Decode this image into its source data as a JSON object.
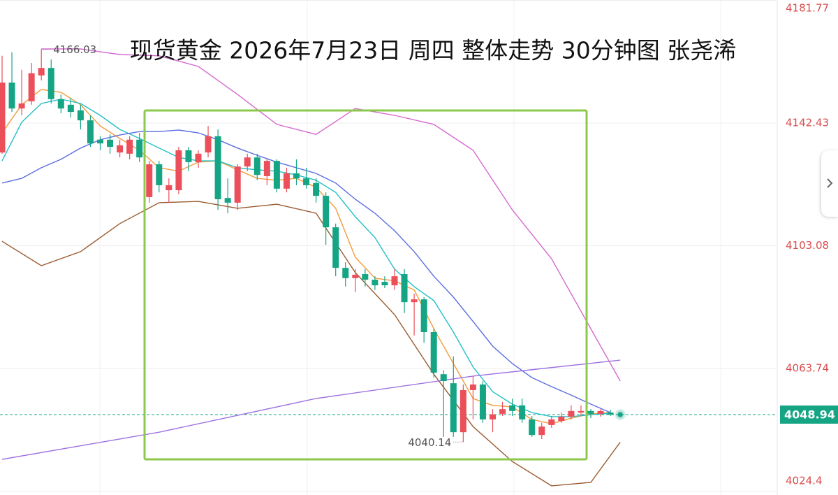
{
  "chart_data": {
    "type": "candlestick",
    "title": "现货黄金 2026年7月23日 周四 整体走势 30分钟图 张尧浠",
    "ylim": [
      4023.16,
      4181.89
    ],
    "yticks": [
      4181.77,
      4142.43,
      4103.08,
      4063.74,
      4024.4
    ],
    "up_color": "#eb4f5a",
    "down_color": "#15a585",
    "grid": true,
    "current_price": 4048.94,
    "high_marker": 4166.03,
    "low_marker": 4040.14,
    "candles": [
      [
        4133.0,
        4164.0,
        4132.6,
        4155.4
      ],
      [
        4155.4,
        4165.1,
        4146.0,
        4147.1
      ],
      [
        4147.1,
        4159.5,
        4144.9,
        4148.7
      ],
      [
        4149.4,
        4161.7,
        4148.3,
        4158.4
      ],
      [
        4157.7,
        4166.03,
        4156.1,
        4160.1
      ],
      [
        4160.1,
        4162.8,
        4148.7,
        4150.1
      ],
      [
        4150.1,
        4151.6,
        4145.6,
        4147.1
      ],
      [
        4148.3,
        4150.5,
        4144.2,
        4146.0
      ],
      [
        4146.5,
        4148.3,
        4140.4,
        4143.3
      ],
      [
        4143.3,
        4144.9,
        4134.8,
        4135.9
      ],
      [
        4137.1,
        4138.2,
        4133.7,
        4135.9
      ],
      [
        4137.1,
        4138.8,
        4132.6,
        4134.8
      ],
      [
        4133.0,
        4137.1,
        4131.4,
        4135.3
      ],
      [
        4132.6,
        4138.2,
        4130.8,
        4137.1
      ],
      [
        4137.1,
        4139.3,
        4129.9,
        4131.4
      ],
      [
        4118.7,
        4130.3,
        4116.9,
        4129.2
      ],
      [
        4129.2,
        4130.3,
        4120.2,
        4122.5
      ],
      [
        4120.9,
        4124.7,
        4116.9,
        4122.5
      ],
      [
        4120.9,
        4134.8,
        4119.6,
        4133.7
      ],
      [
        4133.7,
        4134.8,
        4127.0,
        4129.9
      ],
      [
        4129.9,
        4133.7,
        4128.1,
        4132.6
      ],
      [
        4133.0,
        4141.5,
        4131.4,
        4138.2
      ],
      [
        4138.2,
        4140.4,
        4114.6,
        4118.0
      ],
      [
        4118.4,
        4124.7,
        4113.5,
        4116.9
      ],
      [
        4116.9,
        4129.2,
        4114.6,
        4128.5
      ],
      [
        4128.5,
        4132.6,
        4127.0,
        4131.4
      ],
      [
        4131.4,
        4132.6,
        4124.1,
        4125.8
      ],
      [
        4125.4,
        4130.8,
        4122.5,
        4130.3
      ],
      [
        4130.3,
        4130.8,
        4120.2,
        4121.4
      ],
      [
        4121.4,
        4128.1,
        4120.2,
        4126.3
      ],
      [
        4126.3,
        4130.8,
        4122.5,
        4124.7
      ],
      [
        4124.7,
        4128.1,
        4121.4,
        4122.5
      ],
      [
        4123.2,
        4124.7,
        4116.9,
        4119.1
      ],
      [
        4119.1,
        4120.2,
        4103.4,
        4109.0
      ],
      [
        4109.0,
        4110.2,
        4093.3,
        4096.0
      ],
      [
        4096.0,
        4097.8,
        4090.0,
        4092.7
      ],
      [
        4092.7,
        4095.6,
        4088.2,
        4093.8
      ],
      [
        4094.0,
        4095.6,
        4090.0,
        4092.2
      ],
      [
        4092.2,
        4093.3,
        4088.9,
        4090.4
      ],
      [
        4091.5,
        4093.3,
        4089.5,
        4090.4
      ],
      [
        4090.4,
        4095.6,
        4088.9,
        4093.3
      ],
      [
        4094.0,
        4095.6,
        4081.5,
        4085.0
      ],
      [
        4085.0,
        4087.7,
        4074.3,
        4085.9
      ],
      [
        4085.9,
        4086.6,
        4072.0,
        4075.4
      ],
      [
        4075.4,
        4076.5,
        4060.8,
        4062.4
      ],
      [
        4061.9,
        4063.1,
        4041.8,
        4059.7
      ],
      [
        4059.0,
        4067.6,
        4041.8,
        4043.3
      ],
      [
        4043.3,
        4058.6,
        4040.14,
        4056.8
      ],
      [
        4056.8,
        4061.3,
        4047.4,
        4058.6
      ],
      [
        4058.6,
        4059.7,
        4046.3,
        4047.4
      ],
      [
        4047.4,
        4050.7,
        4043.3,
        4049.0
      ],
      [
        4049.2,
        4053.0,
        4048.5,
        4050.7
      ],
      [
        4051.9,
        4054.1,
        4048.5,
        4050.1
      ],
      [
        4051.9,
        4054.1,
        4046.3,
        4047.4
      ],
      [
        4047.4,
        4048.5,
        4041.8,
        4042.4
      ],
      [
        4042.4,
        4046.3,
        4041.1,
        4045.1
      ],
      [
        4045.6,
        4048.5,
        4044.7,
        4047.4
      ],
      [
        4046.9,
        4049.6,
        4046.3,
        4048.3
      ],
      [
        4048.3,
        4051.9,
        4047.4,
        4050.1
      ],
      [
        4049.6,
        4051.9,
        4048.5,
        4050.1
      ],
      [
        4050.1,
        4050.7,
        4047.8,
        4049.2
      ],
      [
        4049.2,
        4050.7,
        4048.3,
        4050.1
      ],
      [
        4049.6,
        4050.5,
        4048.5,
        4048.94
      ]
    ],
    "lines": [
      {
        "color": "#f39a3a",
        "x": [
          0,
          2,
          4,
          6,
          8,
          10,
          12,
          14,
          16,
          18,
          20,
          22,
          24,
          26,
          28,
          30,
          32,
          34,
          36,
          38,
          40,
          42,
          44,
          46,
          48,
          50,
          52,
          54,
          56,
          58,
          60,
          62
        ],
        "values": [
          4139.3,
          4148.3,
          4153.2,
          4152.3,
          4148.3,
          4141.5,
          4137.5,
          4133.7,
          4128.1,
          4127.0,
          4129.9,
          4130.3,
          4127.4,
          4124.7,
          4124.1,
          4124.7,
          4121.8,
          4115.1,
          4099.4,
          4092.7,
          4091.8,
          4088.9,
          4076.5,
          4065.3,
          4054.1,
          4051.9,
          4051.4,
          4047.4,
          4046.0,
          4047.8,
          4049.2,
          4049.6
        ]
      },
      {
        "color": "#22bfc8",
        "x": [
          0,
          2,
          4,
          6,
          8,
          10,
          12,
          14,
          16,
          18,
          20,
          22,
          24,
          26,
          28,
          30,
          32,
          34,
          36,
          38,
          40,
          42,
          44,
          46,
          48,
          50,
          52,
          54,
          56,
          58,
          60,
          62
        ],
        "values": [
          4130.3,
          4142.7,
          4148.7,
          4150.1,
          4148.7,
          4144.9,
          4140.4,
          4137.5,
          4134.4,
          4131.4,
          4130.3,
          4130.3,
          4128.1,
          4127.4,
          4127.0,
          4125.8,
          4124.1,
          4120.2,
          4112.4,
          4105.7,
          4095.6,
          4090.0,
          4085.5,
          4075.4,
          4064.2,
          4056.3,
          4052.3,
          4049.6,
          4048.3,
          4048.3,
          4048.9,
          4049.4
        ]
      },
      {
        "color": "#5a6ee0",
        "x": [
          0,
          2,
          4,
          6,
          8,
          10,
          12,
          14,
          16,
          18,
          20,
          22,
          24,
          26,
          28,
          30,
          32,
          34,
          36,
          38,
          40,
          42,
          44,
          46,
          48,
          50,
          52,
          54,
          56,
          58,
          60,
          62
        ],
        "values": [
          4123.2,
          4124.7,
          4128.1,
          4130.8,
          4134.4,
          4137.1,
          4138.6,
          4139.7,
          4139.7,
          4140.2,
          4139.3,
          4137.1,
          4134.4,
          4132.1,
          4129.9,
          4128.1,
          4126.3,
          4123.2,
          4118.0,
          4113.5,
          4107.9,
          4101.2,
          4093.3,
          4086.6,
          4078.8,
          4070.9,
          4065.3,
          4060.8,
          4057.9,
          4055.2,
          4052.3,
          4049.6
        ]
      },
      {
        "color": "#d56ad0",
        "x": [
          4,
          8,
          12,
          16,
          20,
          24,
          28,
          32,
          36,
          40,
          44,
          48,
          52,
          56,
          60,
          63
        ],
        "values": [
          4166.2,
          4166.2,
          4164.4,
          4164.0,
          4160.6,
          4151.6,
          4142.0,
          4138.8,
          4147.1,
          4144.9,
          4142.0,
          4133.7,
          4114.6,
          4098.9,
          4076.5,
          4059.7
        ]
      },
      {
        "color": "#9a5a2e",
        "x": [
          0,
          4,
          8,
          12,
          16,
          20,
          24,
          28,
          32,
          36,
          40,
          44,
          48,
          52,
          56,
          60,
          63
        ],
        "values": [
          4104.5,
          4096.7,
          4101.2,
          4110.2,
          4116.9,
          4117.3,
          4115.1,
          4116.4,
          4113.5,
          4094.5,
          4081.0,
          4061.9,
          4045.1,
          4033.9,
          4026.1,
          4027.2,
          4040.1
        ]
      },
      {
        "color": "#9d73e0",
        "x": [
          0,
          16,
          32,
          48,
          63
        ],
        "values": [
          4034.6,
          4043.3,
          4054.1,
          4061.3,
          4066.4
        ]
      }
    ]
  }
}
